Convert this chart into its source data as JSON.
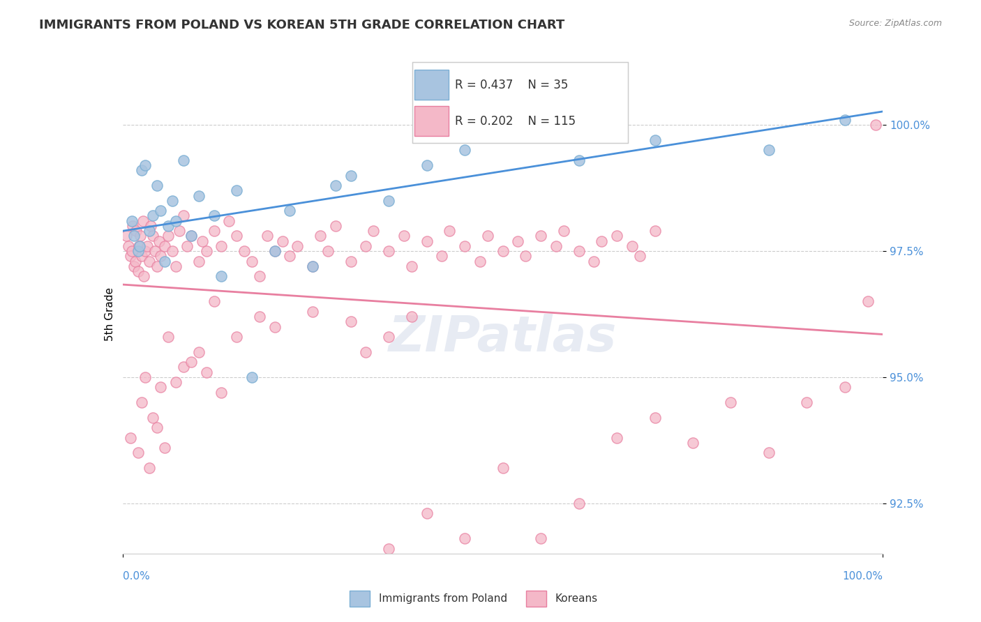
{
  "title": "IMMIGRANTS FROM POLAND VS KOREAN 5TH GRADE CORRELATION CHART",
  "source": "Source: ZipAtlas.com",
  "ylabel": "5th Grade",
  "ytick_labels": [
    "92.5%",
    "95.0%",
    "97.5%",
    "100.0%"
  ],
  "ytick_values": [
    92.5,
    95.0,
    97.5,
    100.0
  ],
  "xlim": [
    0.0,
    100.0
  ],
  "ylim": [
    91.5,
    101.0
  ],
  "poland_color": "#a8c4e0",
  "poland_edge": "#7bafd4",
  "korea_color": "#f4b8c8",
  "korea_edge": "#e87fa0",
  "trend_poland_color": "#4a90d9",
  "trend_korea_color": "#e87fa0",
  "poland_points": [
    [
      1.2,
      98.1
    ],
    [
      1.5,
      97.8
    ],
    [
      2.0,
      97.5
    ],
    [
      2.2,
      97.6
    ],
    [
      2.5,
      99.1
    ],
    [
      3.0,
      99.2
    ],
    [
      3.5,
      97.9
    ],
    [
      4.0,
      98.2
    ],
    [
      4.5,
      98.8
    ],
    [
      5.0,
      98.3
    ],
    [
      5.5,
      97.3
    ],
    [
      6.0,
      98.0
    ],
    [
      6.5,
      98.5
    ],
    [
      7.0,
      98.1
    ],
    [
      8.0,
      99.3
    ],
    [
      9.0,
      97.8
    ],
    [
      10.0,
      98.6
    ],
    [
      12.0,
      98.2
    ],
    [
      13.0,
      97.0
    ],
    [
      15.0,
      98.7
    ],
    [
      17.0,
      95.0
    ],
    [
      20.0,
      97.5
    ],
    [
      22.0,
      98.3
    ],
    [
      25.0,
      97.2
    ],
    [
      28.0,
      98.8
    ],
    [
      30.0,
      99.0
    ],
    [
      35.0,
      98.5
    ],
    [
      40.0,
      99.2
    ],
    [
      45.0,
      99.5
    ],
    [
      50.0,
      99.8
    ],
    [
      55.0,
      100.0
    ],
    [
      60.0,
      99.3
    ],
    [
      70.0,
      99.7
    ],
    [
      85.0,
      99.5
    ],
    [
      95.0,
      100.1
    ]
  ],
  "korea_points": [
    [
      0.5,
      97.8
    ],
    [
      0.8,
      97.6
    ],
    [
      1.0,
      97.4
    ],
    [
      1.2,
      97.5
    ],
    [
      1.3,
      98.0
    ],
    [
      1.5,
      97.2
    ],
    [
      1.7,
      97.3
    ],
    [
      1.8,
      97.9
    ],
    [
      2.0,
      97.1
    ],
    [
      2.1,
      97.6
    ],
    [
      2.3,
      97.8
    ],
    [
      2.5,
      97.4
    ],
    [
      2.7,
      98.1
    ],
    [
      2.8,
      97.0
    ],
    [
      3.0,
      97.5
    ],
    [
      3.2,
      97.6
    ],
    [
      3.5,
      97.3
    ],
    [
      3.7,
      98.0
    ],
    [
      4.0,
      97.8
    ],
    [
      4.2,
      97.5
    ],
    [
      4.5,
      97.2
    ],
    [
      4.8,
      97.7
    ],
    [
      5.0,
      97.4
    ],
    [
      5.5,
      97.6
    ],
    [
      6.0,
      97.8
    ],
    [
      6.5,
      97.5
    ],
    [
      7.0,
      97.2
    ],
    [
      7.5,
      97.9
    ],
    [
      8.0,
      98.2
    ],
    [
      8.5,
      97.6
    ],
    [
      9.0,
      97.8
    ],
    [
      10.0,
      97.3
    ],
    [
      10.5,
      97.7
    ],
    [
      11.0,
      97.5
    ],
    [
      12.0,
      97.9
    ],
    [
      13.0,
      97.6
    ],
    [
      14.0,
      98.1
    ],
    [
      15.0,
      97.8
    ],
    [
      16.0,
      97.5
    ],
    [
      17.0,
      97.3
    ],
    [
      18.0,
      97.0
    ],
    [
      19.0,
      97.8
    ],
    [
      20.0,
      97.5
    ],
    [
      21.0,
      97.7
    ],
    [
      22.0,
      97.4
    ],
    [
      23.0,
      97.6
    ],
    [
      25.0,
      97.2
    ],
    [
      26.0,
      97.8
    ],
    [
      27.0,
      97.5
    ],
    [
      28.0,
      98.0
    ],
    [
      30.0,
      97.3
    ],
    [
      32.0,
      97.6
    ],
    [
      33.0,
      97.9
    ],
    [
      35.0,
      97.5
    ],
    [
      37.0,
      97.8
    ],
    [
      38.0,
      97.2
    ],
    [
      40.0,
      97.7
    ],
    [
      42.0,
      97.4
    ],
    [
      43.0,
      97.9
    ],
    [
      45.0,
      97.6
    ],
    [
      47.0,
      97.3
    ],
    [
      48.0,
      97.8
    ],
    [
      50.0,
      97.5
    ],
    [
      52.0,
      97.7
    ],
    [
      53.0,
      97.4
    ],
    [
      55.0,
      97.8
    ],
    [
      57.0,
      97.6
    ],
    [
      58.0,
      97.9
    ],
    [
      60.0,
      97.5
    ],
    [
      62.0,
      97.3
    ],
    [
      63.0,
      97.7
    ],
    [
      65.0,
      97.8
    ],
    [
      67.0,
      97.6
    ],
    [
      68.0,
      97.4
    ],
    [
      70.0,
      97.9
    ],
    [
      12.0,
      96.5
    ],
    [
      15.0,
      95.8
    ],
    [
      18.0,
      96.2
    ],
    [
      20.0,
      96.0
    ],
    [
      25.0,
      96.3
    ],
    [
      30.0,
      96.1
    ],
    [
      32.0,
      95.5
    ],
    [
      35.0,
      95.8
    ],
    [
      38.0,
      96.2
    ],
    [
      3.0,
      95.0
    ],
    [
      5.0,
      94.8
    ],
    [
      8.0,
      95.2
    ],
    [
      10.0,
      95.5
    ],
    [
      2.5,
      94.5
    ],
    [
      4.0,
      94.2
    ],
    [
      6.0,
      95.8
    ],
    [
      7.0,
      94.9
    ],
    [
      9.0,
      95.3
    ],
    [
      11.0,
      95.1
    ],
    [
      13.0,
      94.7
    ],
    [
      1.0,
      93.8
    ],
    [
      2.0,
      93.5
    ],
    [
      3.5,
      93.2
    ],
    [
      5.5,
      93.6
    ],
    [
      4.5,
      94.0
    ],
    [
      50.0,
      93.2
    ],
    [
      55.0,
      91.8
    ],
    [
      60.0,
      92.5
    ],
    [
      65.0,
      93.8
    ],
    [
      70.0,
      94.2
    ],
    [
      45.0,
      91.8
    ],
    [
      40.0,
      92.3
    ],
    [
      35.0,
      91.6
    ],
    [
      75.0,
      93.7
    ],
    [
      80.0,
      94.5
    ],
    [
      85.0,
      93.5
    ],
    [
      90.0,
      94.5
    ],
    [
      95.0,
      94.8
    ],
    [
      98.0,
      96.5
    ],
    [
      99.0,
      100.0
    ]
  ]
}
